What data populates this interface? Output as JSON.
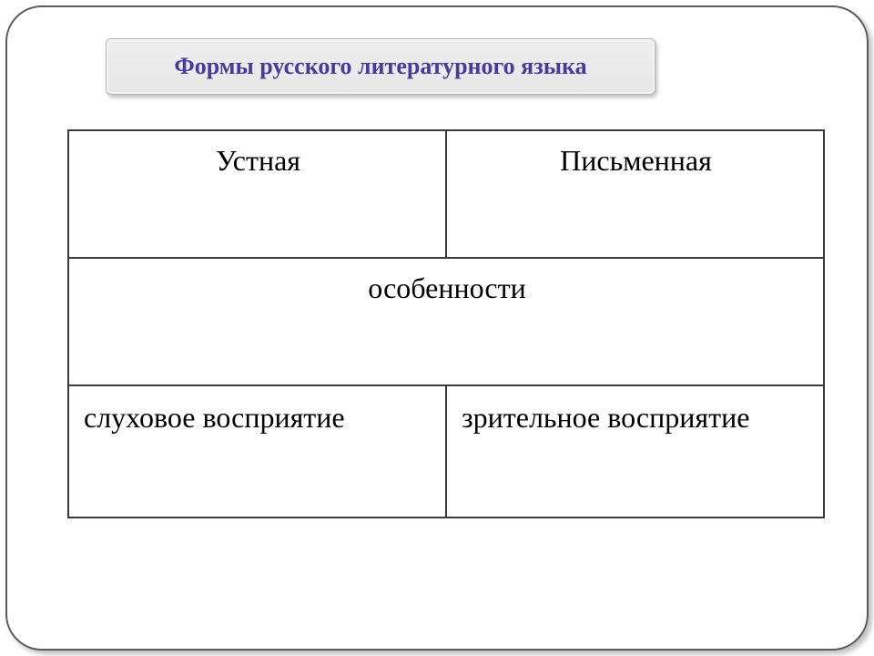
{
  "header": {
    "title": "Формы русского литературного языка",
    "title_color": "#4b3a9e",
    "title_fontsize": 26,
    "box_bg": "#e9e9e9",
    "box_border": "#b5b5b5"
  },
  "table": {
    "type": "table",
    "border_color": "#3a3a3a",
    "border_width": 2,
    "text_color": "#000000",
    "fontsize": 32,
    "columns": [
      {
        "width": 0.5
      },
      {
        "width": 0.5
      }
    ],
    "rows": [
      {
        "cells": [
          {
            "text": "Устная",
            "align": "center"
          },
          {
            "text": "Письменная",
            "align": "center"
          }
        ]
      },
      {
        "cells": [
          {
            "text": "особенности",
            "align": "center",
            "colspan": 2
          }
        ]
      },
      {
        "cells": [
          {
            "text": "слуховое восприятие",
            "align": "left"
          },
          {
            "text": "зрительное восприятие",
            "align": "left"
          }
        ]
      }
    ]
  },
  "frame": {
    "border_color": "#5a5a5a",
    "border_radius": 40,
    "shadow": "4px 4px 6px rgba(0,0,0,0.25)"
  }
}
